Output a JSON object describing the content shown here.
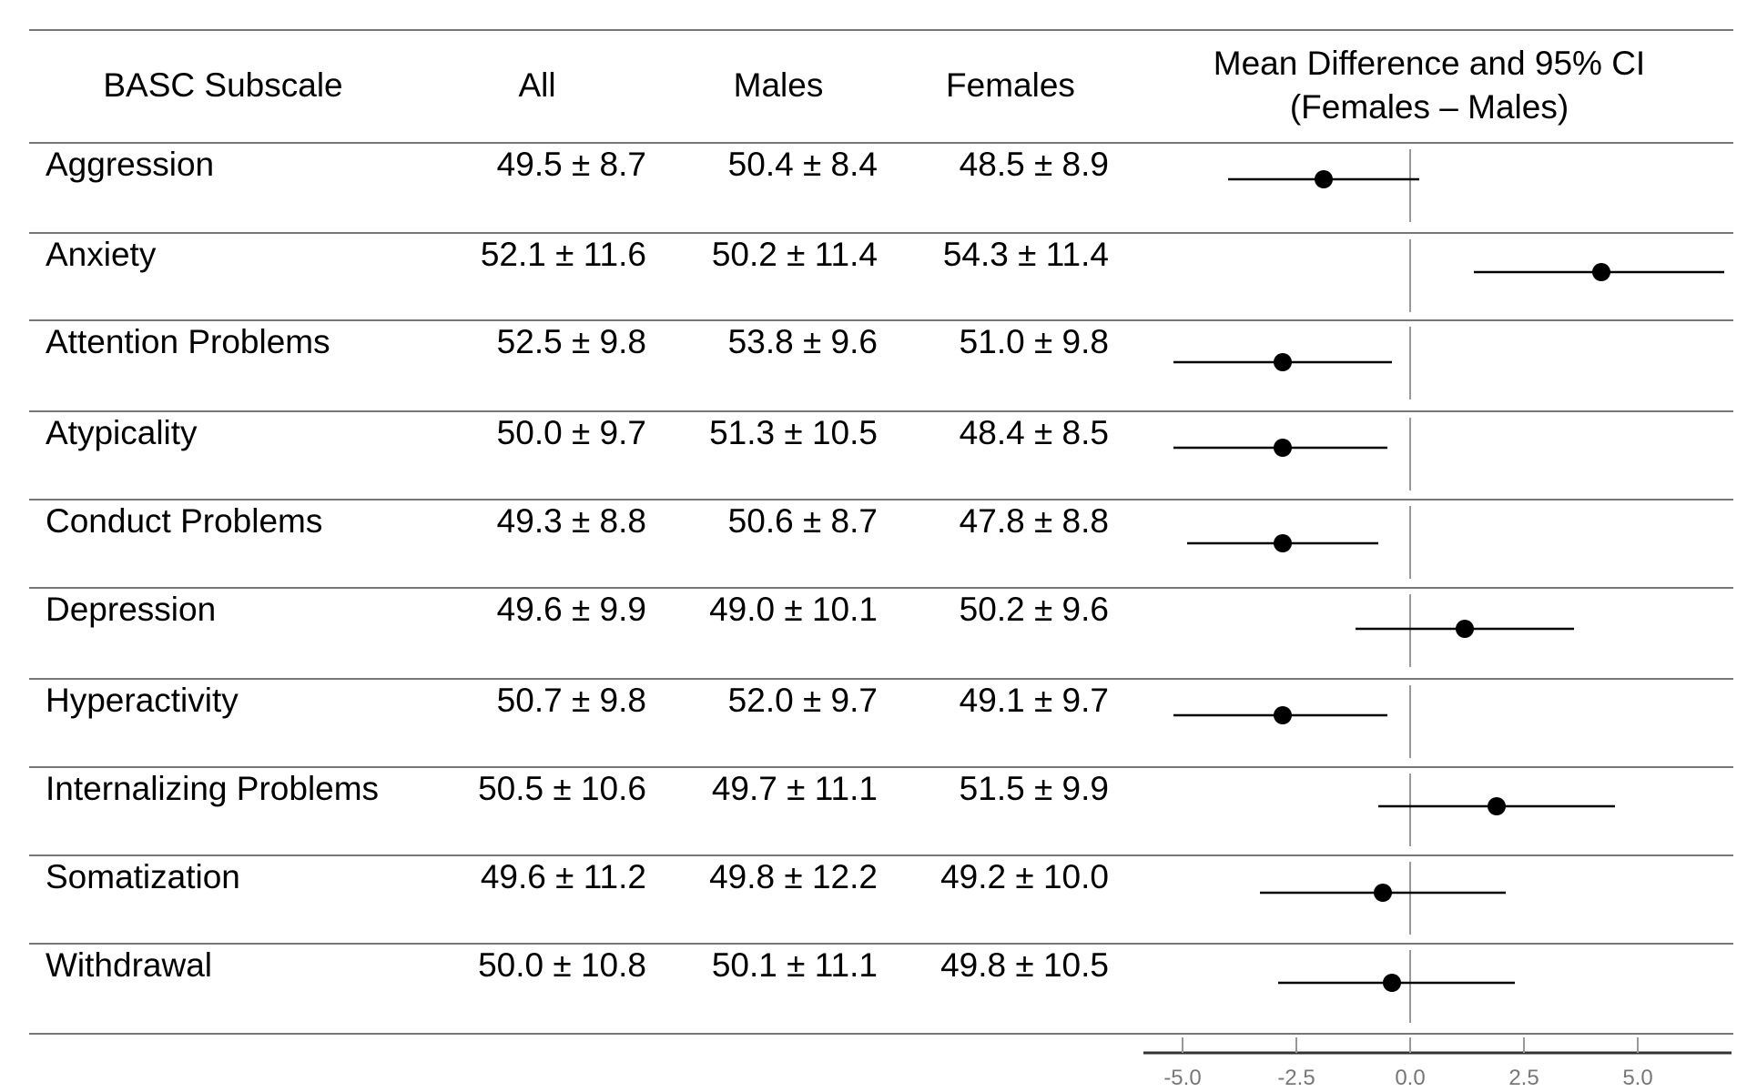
{
  "headers": {
    "subscale": "BASC Subscale",
    "all": "All",
    "males": "Males",
    "females": "Females",
    "ci_line1": "Mean Difference and 95% CI",
    "ci_line2": "(Females – Males)"
  },
  "rows": [
    {
      "label": "Aggression",
      "all": "49.5 ± 8.7",
      "males": "50.4 ± 8.4",
      "females": "48.5 ± 8.9"
    },
    {
      "label": "Anxiety",
      "all": "52.1 ± 11.6",
      "males": "50.2 ± 11.4",
      "females": "54.3 ± 11.4"
    },
    {
      "label": "Attention Problems",
      "all": "52.5 ±  9.8",
      "males": "53.8 ± 9.6",
      "females": "51.0 ± 9.8"
    },
    {
      "label": "Atypicality",
      "all": "50.0 ± 9.7",
      "males": "51.3 ± 10.5",
      "females": "48.4 ± 8.5"
    },
    {
      "label": "Conduct Problems",
      "all": "49.3 ± 8.8",
      "males": "50.6 ± 8.7",
      "females": "47.8 ± 8.8"
    },
    {
      "label": "Depression",
      "all": "49.6 ± 9.9",
      "males": "49.0 ± 10.1",
      "females": "50.2 ± 9.6"
    },
    {
      "label": "Hyperactivity",
      "all": "50.7 ± 9.8",
      "males": "52.0 ± 9.7",
      "females": "49.1 ± 9.7"
    },
    {
      "label": "Internalizing Problems",
      "all": "50.5 ± 10.6",
      "males": "49.7 ± 11.1",
      "females": "51.5 ± 9.9"
    },
    {
      "label": "Somatization",
      "all": "49.6 ± 11.2",
      "males": "49.8 ± 12.2",
      "females": "49.2 ± 10.0"
    },
    {
      "label": "Withdrawal",
      "all": "50.0 ± 10.8",
      "males": "50.1 ± 11.1",
      "females": "49.8 ± 10.5"
    }
  ],
  "chart_data": {
    "type": "scatter",
    "subtype": "forest-plot",
    "title": "Mean Difference and 95% CI (Females – Males)",
    "categories": [
      "Aggression",
      "Anxiety",
      "Attention Problems",
      "Atypicality",
      "Conduct Problems",
      "Depression",
      "Hyperactivity",
      "Internalizing Problems",
      "Somatization",
      "Withdrawal"
    ],
    "estimates": [
      -1.9,
      4.2,
      -2.8,
      -2.8,
      -2.8,
      1.2,
      -2.8,
      1.9,
      -0.6,
      -0.4
    ],
    "ci_lower": [
      -4.0,
      1.4,
      -5.2,
      -5.2,
      -4.9,
      -1.2,
      -5.2,
      -0.7,
      -3.3,
      -2.9
    ],
    "ci_upper": [
      0.2,
      6.9,
      -0.4,
      -0.5,
      -0.7,
      3.6,
      -0.5,
      4.5,
      2.1,
      2.3
    ],
    "xlim": [
      -5.8,
      7.0
    ],
    "x_ticks": [
      -5.0,
      -2.5,
      0.0,
      2.5,
      5.0
    ],
    "x_tick_labels": [
      "-5.0",
      "-2.5",
      "0.0",
      "2.5",
      "5.0"
    ],
    "reference_line": 0,
    "colors": {
      "marker": "#000000",
      "whisker": "#000000",
      "reference": "#999999",
      "axis": "#333333",
      "tick_label": "#777777"
    }
  }
}
